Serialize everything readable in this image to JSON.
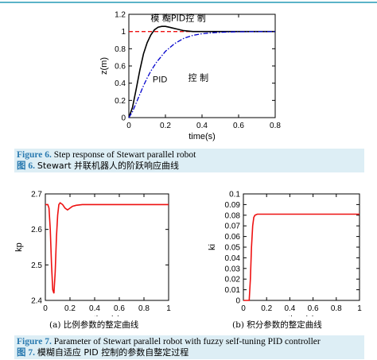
{
  "figure6": {
    "caption_en_label": "Figure 6.",
    "caption_en_text": "Step response of Stewart parallel robot",
    "caption_zh_label": "图 6.",
    "caption_zh_text": "Stewart 并联机器人的阶跃响应曲线"
  },
  "figure7": {
    "caption_en_label": "Figure 7.",
    "caption_en_text": "Parameter of Stewart parallel robot with fuzzy self-tuning PID controller",
    "caption_zh_label": "图 7.",
    "caption_zh_text": "模糊自适应 PID 控制的参数自整定过程",
    "sub_a": "(a)  比例参数的整定曲线",
    "sub_b": "(b)  积分参数的整定曲线"
  },
  "chart_data": [
    {
      "type": "line",
      "xlabel": "time(s)",
      "ylabel": "z(m)",
      "xlim": [
        0,
        0.8
      ],
      "ylim": [
        0,
        1.2
      ],
      "xticks": [
        "0",
        "0.2",
        "0.4",
        "0.6",
        "0.8"
      ],
      "yticks": [
        "0",
        "0.2",
        "0.4",
        "0.6",
        "0.8",
        "1",
        "1.2"
      ],
      "annotations": [
        "模 糊PID控 制",
        "PID",
        "控 制"
      ],
      "series": [
        {
          "color": "#ee1111",
          "style": "dashed",
          "x": [
            0,
            0.8
          ],
          "y": [
            1.0,
            1.0
          ]
        },
        {
          "color": "#000000",
          "style": "solid",
          "x": [
            0,
            0.02,
            0.04,
            0.06,
            0.08,
            0.1,
            0.12,
            0.14,
            0.16,
            0.18,
            0.2,
            0.22,
            0.24,
            0.26,
            0.28,
            0.3,
            0.35,
            0.4,
            0.5,
            0.6,
            0.7,
            0.8
          ],
          "y": [
            0,
            0.12,
            0.33,
            0.55,
            0.74,
            0.87,
            0.96,
            1.02,
            1.05,
            1.06,
            1.06,
            1.05,
            1.04,
            1.03,
            1.02,
            1.01,
            1.0,
            1.0,
            1.0,
            1.0,
            1.0,
            1.0
          ]
        },
        {
          "color": "#0000cc",
          "style": "dashdot",
          "x": [
            0,
            0.02,
            0.04,
            0.06,
            0.08,
            0.1,
            0.12,
            0.15,
            0.2,
            0.25,
            0.3,
            0.35,
            0.4,
            0.45,
            0.5,
            0.55,
            0.6,
            0.7,
            0.8
          ],
          "y": [
            0,
            0.07,
            0.17,
            0.27,
            0.37,
            0.46,
            0.54,
            0.64,
            0.77,
            0.86,
            0.92,
            0.955,
            0.975,
            0.985,
            0.99,
            0.995,
            0.997,
            0.999,
            1.0
          ]
        }
      ]
    },
    {
      "type": "line",
      "xlabel": "time(s)",
      "ylabel": "kp",
      "xlim": [
        0,
        1
      ],
      "ylim": [
        2.4,
        2.7
      ],
      "xticks": [
        "0",
        "0.2",
        "0.4",
        "0.6",
        "0.8",
        "1"
      ],
      "yticks": [
        "2.4",
        "2.5",
        "2.6",
        "2.7"
      ],
      "series": [
        {
          "color": "#ee1111",
          "style": "solid",
          "x": [
            0,
            0.02,
            0.03,
            0.04,
            0.05,
            0.06,
            0.07,
            0.08,
            0.09,
            0.1,
            0.11,
            0.12,
            0.14,
            0.16,
            0.18,
            0.2,
            0.22,
            0.25,
            0.3,
            0.4,
            1.0
          ],
          "y": [
            2.67,
            2.67,
            2.66,
            2.6,
            2.5,
            2.43,
            2.42,
            2.48,
            2.58,
            2.64,
            2.67,
            2.675,
            2.67,
            2.66,
            2.655,
            2.66,
            2.665,
            2.668,
            2.67,
            2.67,
            2.67
          ]
        }
      ]
    },
    {
      "type": "line",
      "xlabel": "time(s)",
      "ylabel": "ki",
      "xlim": [
        0,
        1
      ],
      "ylim": [
        0,
        0.1
      ],
      "xticks": [
        "0",
        "0.2",
        "0.4",
        "0.6",
        "0.8",
        "1"
      ],
      "yticks": [
        "0",
        "0.01",
        "0.02",
        "0.03",
        "0.04",
        "0.05",
        "0.06",
        "0.07",
        "0.08",
        "0.09",
        "0.1"
      ],
      "series": [
        {
          "color": "#ee1111",
          "style": "solid",
          "x": [
            0,
            0.05,
            0.06,
            0.07,
            0.08,
            0.09,
            0.1,
            0.12,
            0.15,
            0.2,
            0.3,
            1.0
          ],
          "y": [
            0,
            0,
            0.02,
            0.05,
            0.07,
            0.078,
            0.08,
            0.081,
            0.081,
            0.081,
            0.081,
            0.081
          ]
        }
      ]
    }
  ]
}
